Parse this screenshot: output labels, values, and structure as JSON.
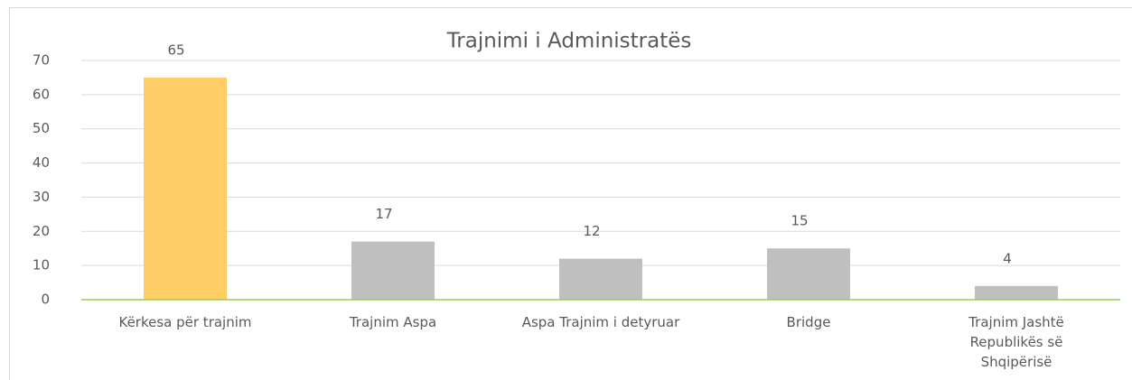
{
  "chart_data": {
    "type": "bar",
    "title": "Trajnimi i Administratës",
    "categories": [
      "Kërkesa për trajnim",
      "Trajnim Aspa",
      "Aspa Trajnim i detyruar",
      "Bridge",
      "Trajnim Jashtë Republikës së Shqipërisë"
    ],
    "values": [
      65,
      17,
      12,
      15,
      4
    ],
    "colors": [
      "#ffcd66",
      "#bfbfbf",
      "#bfbfbf",
      "#bfbfbf",
      "#bfbfbf"
    ],
    "ylim": [
      0,
      70
    ],
    "yticks": [
      0,
      10,
      20,
      30,
      40,
      50,
      60,
      70
    ],
    "grid": true
  }
}
